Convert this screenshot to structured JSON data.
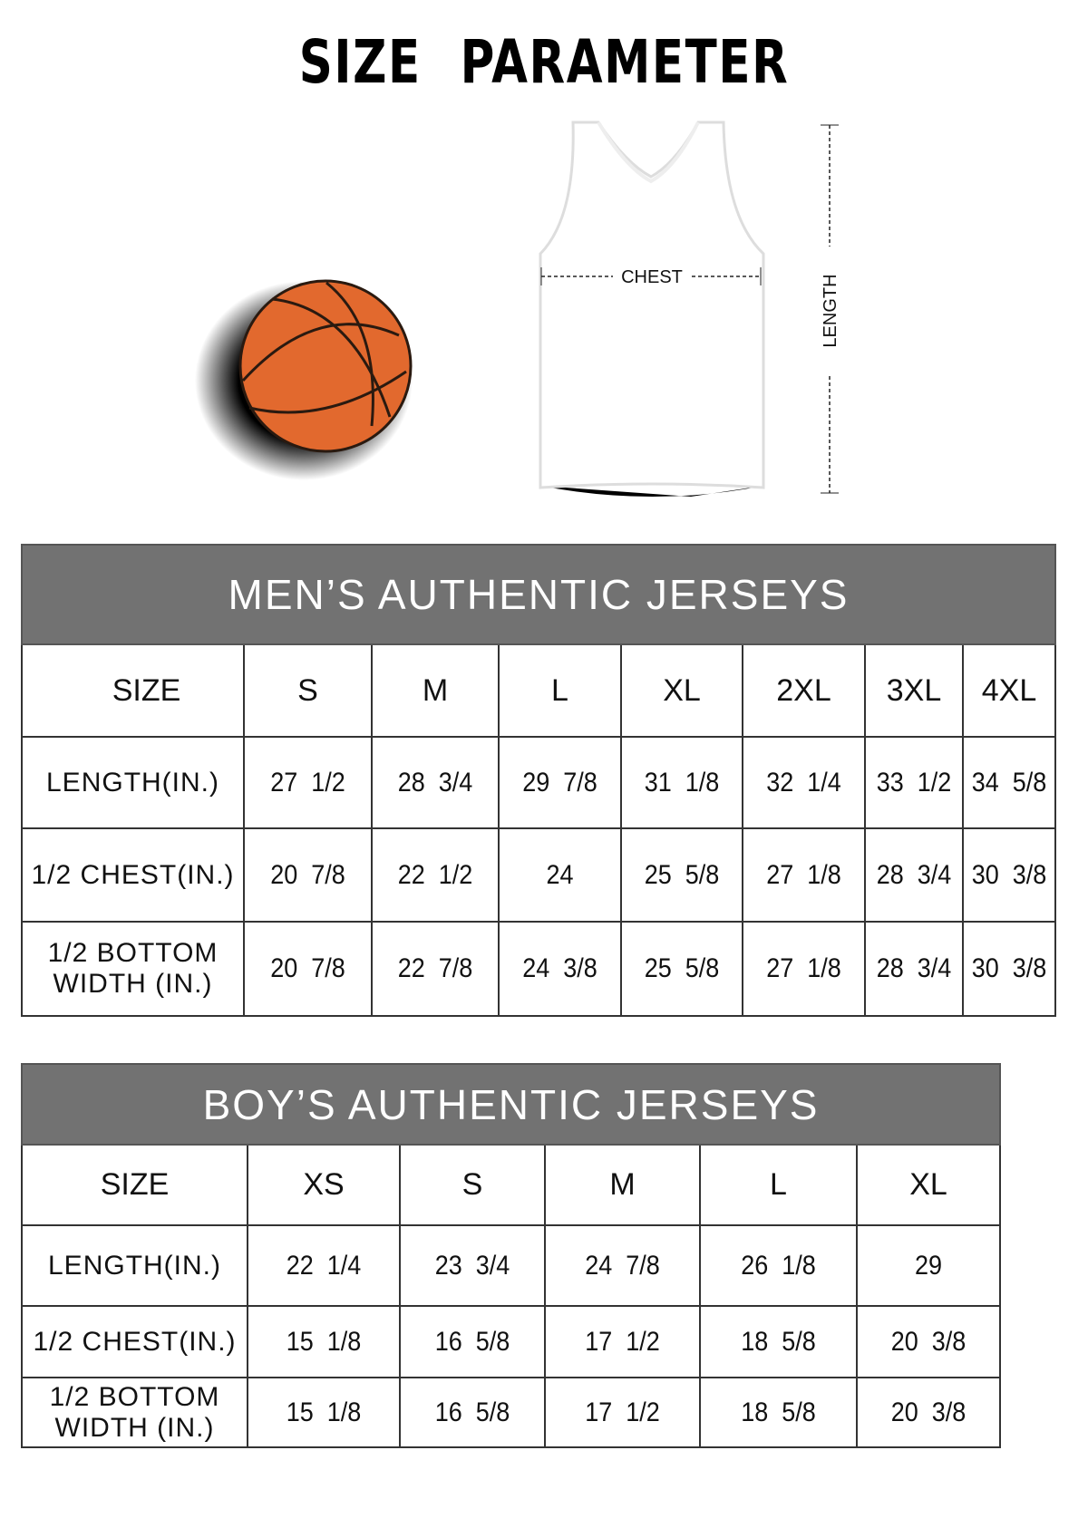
{
  "title": "SIZE PARAMETER",
  "diagram": {
    "chest_label": "CHEST",
    "length_label": "LENGTH",
    "ball_color": "#E2692E",
    "header_color": "#727272"
  },
  "mens": {
    "title": "MEN’S AUTHENTIC JERSEYS",
    "size_label": "SIZE",
    "sizes": [
      "S",
      "M",
      "L",
      "XL",
      "2XL",
      "3XL",
      "4XL"
    ],
    "rows": [
      {
        "label": "LENGTH(IN.)",
        "values": [
          "27  1/2",
          "28  3/4",
          "29  7/8",
          "31  1/8",
          "32  1/4",
          "33  1/2",
          "34  5/8"
        ]
      },
      {
        "label": "1/2 CHEST(IN.)",
        "values": [
          "20  7/8",
          "22  1/2",
          "24",
          "25  5/8",
          "27  1/8",
          "28  3/4",
          "30  3/8"
        ]
      },
      {
        "label": "1/2 BOTTOM\nWIDTH  (IN.)",
        "values": [
          "20  7/8",
          "22  7/8",
          "24  3/8",
          "25  5/8",
          "27  1/8",
          "28  3/4",
          "30  3/8"
        ]
      }
    ]
  },
  "boys": {
    "title": "BOY’S AUTHENTIC JERSEYS",
    "size_label": "SIZE",
    "sizes": [
      "XS",
      "S",
      "M",
      "L",
      "XL"
    ],
    "rows": [
      {
        "label": "LENGTH(IN.)",
        "values": [
          "22  1/4",
          "23  3/4",
          "24  7/8",
          "26  1/8",
          "29"
        ]
      },
      {
        "label": "1/2 CHEST(IN.)",
        "values": [
          "15  1/8",
          "16  5/8",
          "17  1/2",
          "18  5/8",
          "20  3/8"
        ]
      },
      {
        "label": "1/2 BOTTOM\nWIDTH  (IN.)",
        "values": [
          "15  1/8",
          "16  5/8",
          "17  1/2",
          "18  5/8",
          "20  3/8"
        ]
      }
    ]
  }
}
